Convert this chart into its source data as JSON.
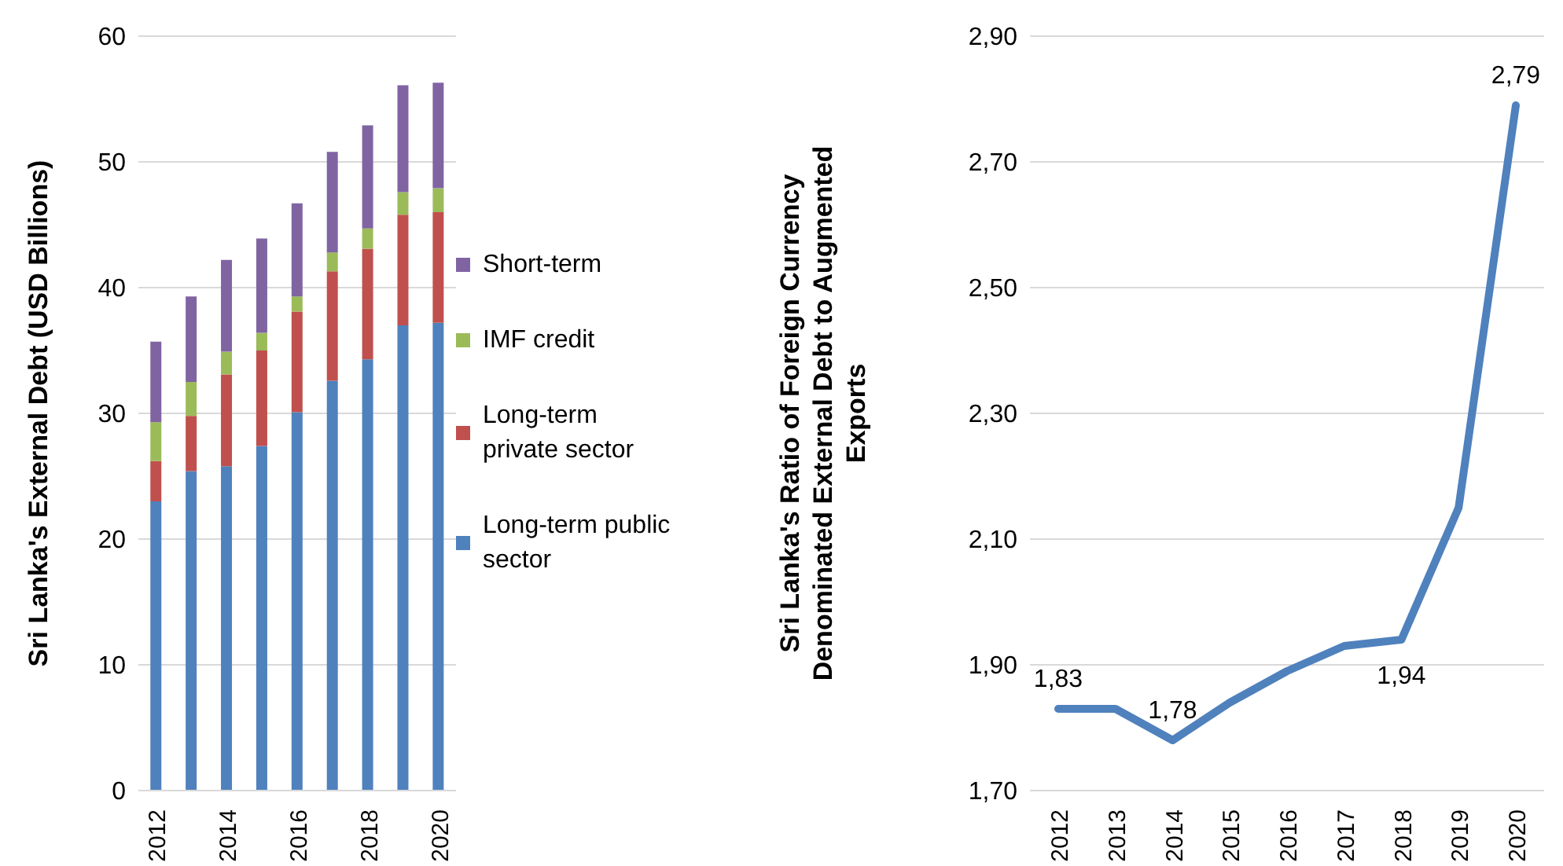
{
  "chart_data": [
    {
      "type": "bar",
      "stacked": true,
      "ylabel": "Sri Lanka's External Debt (USD Billions)",
      "categories": [
        "2012",
        null,
        "2014",
        null,
        "2016",
        null,
        "2018",
        null,
        "2020"
      ],
      "ylim": [
        0,
        60
      ],
      "yticks": [
        0,
        10,
        20,
        30,
        40,
        50,
        60
      ],
      "grid": "y",
      "legend": "right",
      "series": [
        {
          "name": "Long-term public sector",
          "color": "#4f81bd",
          "values": [
            23.0,
            25.4,
            25.8,
            27.4,
            30.1,
            32.6,
            34.3,
            37.0,
            37.2
          ]
        },
        {
          "name": "Long-term private sector",
          "color": "#c0504d",
          "values": [
            3.2,
            4.4,
            7.3,
            7.6,
            8.0,
            8.7,
            8.8,
            8.8,
            8.8
          ]
        },
        {
          "name": "IMF credit",
          "color": "#9bbb59",
          "values": [
            3.1,
            2.7,
            1.8,
            1.4,
            1.2,
            1.5,
            1.6,
            1.8,
            1.9
          ]
        },
        {
          "name": "Short-term",
          "color": "#8064a2",
          "values": [
            6.4,
            6.8,
            7.3,
            7.5,
            7.4,
            8.0,
            8.2,
            8.5,
            8.4
          ]
        }
      ]
    },
    {
      "type": "line",
      "ylabel": "Sri Lanka's Ratio of Foreign Currency Denominated External Debt to Augmented Exports",
      "categories": [
        "2012",
        "2013",
        "2014",
        "2015",
        "2016",
        "2017",
        "2018",
        "2019",
        "2020"
      ],
      "ylim": [
        1.7,
        2.9
      ],
      "yticks": [
        {
          "value": 1.7,
          "label": "1,70"
        },
        {
          "value": 1.9,
          "label": "1,90"
        },
        {
          "value": 2.1,
          "label": "2,10"
        },
        {
          "value": 2.3,
          "label": "2,30"
        },
        {
          "value": 2.5,
          "label": "2,50"
        },
        {
          "value": 2.7,
          "label": "2,70"
        },
        {
          "value": 2.9,
          "label": "2,90"
        }
      ],
      "grid": "y",
      "legend": false,
      "marker": "none",
      "line_style": "solid",
      "series": [
        {
          "color": "#4f81bd",
          "values": [
            1.83,
            1.83,
            1.78,
            1.84,
            1.89,
            1.93,
            1.94,
            2.15,
            2.79
          ],
          "value_labels": [
            "1,83",
            null,
            "1,78",
            null,
            null,
            null,
            "1,94",
            null,
            "2,79"
          ]
        }
      ]
    }
  ]
}
